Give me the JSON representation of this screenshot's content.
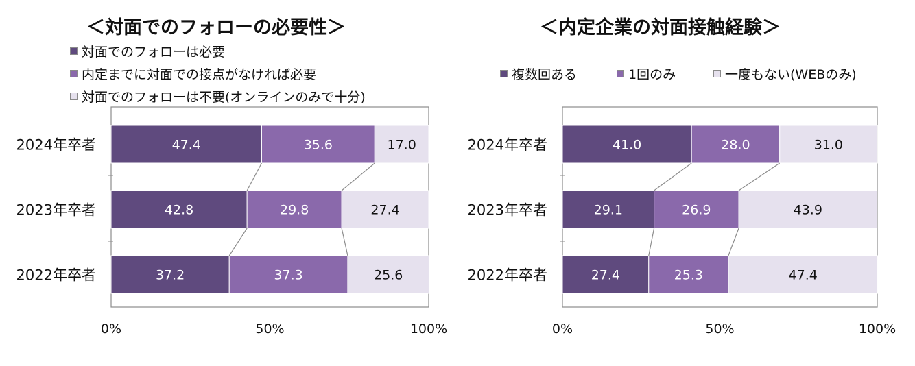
{
  "colors": {
    "series1": "#5f4a7e",
    "series2": "#8a69ab",
    "series3": "#e6e1ee",
    "label_light": "#ffffff",
    "label_dark": "#111111",
    "connector": "#8c8c8c",
    "axis": "#8c8c8c"
  },
  "chart_data": [
    {
      "type": "bar",
      "orientation": "horizontal-stacked-100",
      "title": "＜対面でのフォローの必要性＞",
      "categories": [
        "2024年卒者",
        "2023年卒者",
        "2022年卒者"
      ],
      "series": [
        {
          "name": "対面でのフォローは必要",
          "values": [
            47.4,
            42.8,
            37.2
          ]
        },
        {
          "name": "内定までに対面での接点がなければ必要",
          "values": [
            35.6,
            29.8,
            37.3
          ]
        },
        {
          "name": "対面でのフォローは不要(オンラインのみで十分)",
          "values": [
            17.0,
            27.4,
            25.6
          ]
        }
      ],
      "xlim": [
        0,
        100
      ],
      "xticks": [
        "0%",
        "50%",
        "100%"
      ],
      "legend": "top-left"
    },
    {
      "type": "bar",
      "orientation": "horizontal-stacked-100",
      "title": "＜内定企業の対面接触経験＞",
      "categories": [
        "2024年卒者",
        "2023年卒者",
        "2022年卒者"
      ],
      "series": [
        {
          "name": "複数回ある",
          "values": [
            41.0,
            29.1,
            27.4
          ]
        },
        {
          "name": "1回のみ",
          "values": [
            28.0,
            26.9,
            25.3
          ]
        },
        {
          "name": "一度もない(WEBのみ)",
          "values": [
            31.0,
            43.9,
            47.4
          ]
        }
      ],
      "xlim": [
        0,
        100
      ],
      "xticks": [
        "0%",
        "50%",
        "100%"
      ],
      "legend": "top"
    }
  ]
}
